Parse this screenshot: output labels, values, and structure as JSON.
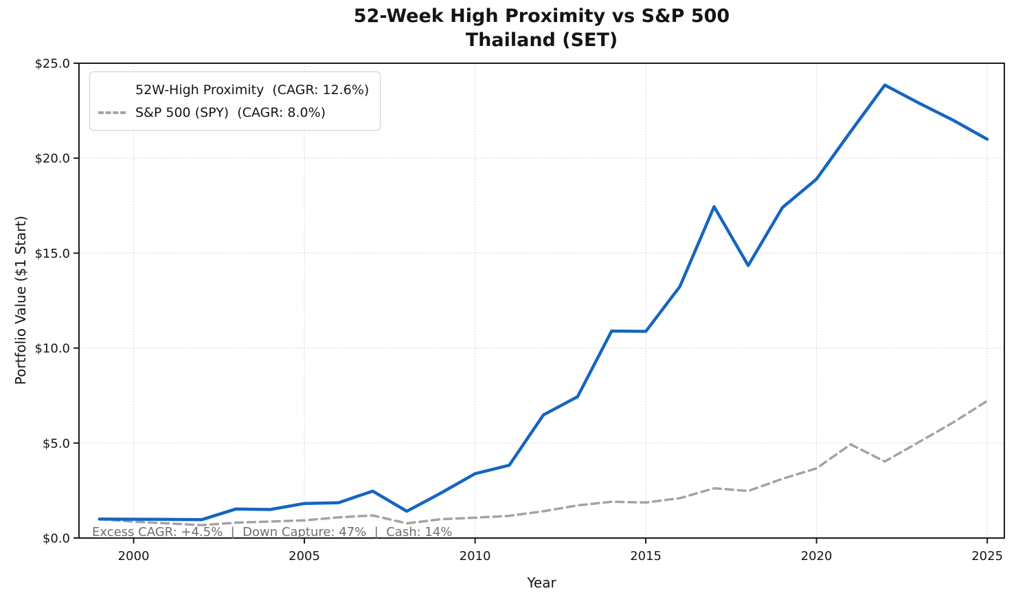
{
  "title": {
    "line1": "52-Week High Proximity vs S&P 500",
    "line2": "Thailand (SET)"
  },
  "axes": {
    "xlabel": "Year",
    "ylabel": "Portfolio Value ($1 Start)"
  },
  "legend": {
    "items": [
      {
        "label": "52W-High Proximity  (CAGR: 12.6%)",
        "color": "#1565c0",
        "style": "solid"
      },
      {
        "label": "S&P 500 (SPY)  (CAGR: 8.0%)",
        "color": "#a3a3a3",
        "style": "dashed"
      }
    ]
  },
  "annotation": {
    "text": "Excess CAGR: +4.5%  |  Down Capture: 47%  |  Cash: 14%"
  },
  "chart_data": {
    "type": "line",
    "title": "52-Week High Proximity vs S&P 500 — Thailand (SET)",
    "xlabel": "Year",
    "ylabel": "Portfolio Value ($1 Start)",
    "xlim": [
      1998.4,
      2025.5
    ],
    "ylim": [
      0,
      25
    ],
    "xticks": [
      2000,
      2005,
      2010,
      2015,
      2020,
      2025
    ],
    "yticks": [
      0,
      5,
      10,
      15,
      20,
      25
    ],
    "ytick_labels": [
      "$0.0",
      "$5.0",
      "$10.0",
      "$15.0",
      "$20.0",
      "$25.0"
    ],
    "grid": "dotted",
    "legend_position": "upper-left",
    "x": [
      1999,
      2000,
      2001,
      2002,
      2003,
      2004,
      2005,
      2006,
      2007,
      2008,
      2009,
      2010,
      2011,
      2012,
      2013,
      2014,
      2015,
      2016,
      2017,
      2018,
      2019,
      2020,
      2021,
      2022,
      2023,
      2024,
      2025
    ],
    "series": [
      {
        "name": "52W-High Proximity  (CAGR: 12.6%)",
        "color": "#1565c0",
        "style": "solid",
        "width": 4.5,
        "values": [
          1.0,
          0.99,
          0.98,
          0.97,
          1.53,
          1.5,
          1.82,
          1.86,
          2.47,
          1.41,
          2.37,
          3.39,
          3.83,
          6.48,
          7.44,
          10.9,
          10.88,
          13.25,
          17.45,
          14.35,
          17.4,
          18.9,
          21.4,
          23.85,
          22.9,
          22.0,
          21.0
        ]
      },
      {
        "name": "S&P 500 (SPY)  (CAGR: 8.0%)",
        "color": "#a3a3a3",
        "style": "dashed",
        "width": 3.5,
        "values": [
          1.0,
          0.86,
          0.77,
          0.68,
          0.81,
          0.87,
          0.93,
          1.09,
          1.19,
          0.77,
          0.99,
          1.07,
          1.17,
          1.41,
          1.72,
          1.91,
          1.87,
          2.1,
          2.62,
          2.48,
          3.12,
          3.67,
          4.93,
          4.03,
          5.05,
          6.08,
          7.22
        ]
      }
    ],
    "annotation": "Excess CAGR: +4.5%  |  Down Capture: 47%  |  Cash: 14%"
  }
}
